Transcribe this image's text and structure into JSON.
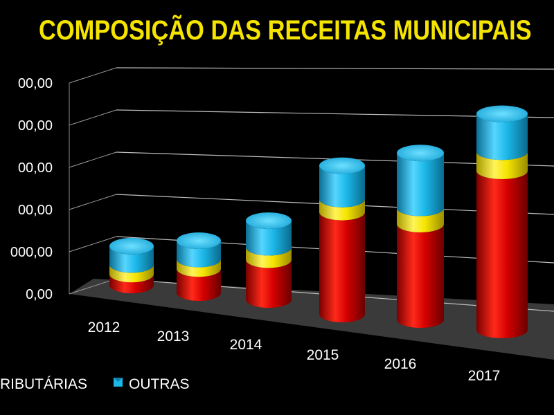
{
  "chart_data": {
    "type": "bar",
    "title": "COMPOSIÇÃO DAS RECEITAS MUNICIPAIS",
    "categories": [
      "2012",
      "2013",
      "2014",
      "2015",
      "2016",
      "2017"
    ],
    "y_tick_labels": [
      "0,00",
      "000,00",
      "00,00",
      "00,00",
      "00,00",
      "00,00"
    ],
    "ylim": [
      0,
      5
    ],
    "stacked": true,
    "series": [
      {
        "name": "",
        "color": "#d40000",
        "values": [
          0.25,
          0.55,
          0.9,
          2.2,
          2.0,
          3.15
        ]
      },
      {
        "name": "RIBUTÁRIAS",
        "color": "#f5e400",
        "values": [
          0.22,
          0.22,
          0.28,
          0.28,
          0.34,
          0.38
        ]
      },
      {
        "name": "OUTRAS",
        "color": "#1bb7e8",
        "values": [
          0.42,
          0.42,
          0.6,
          0.72,
          1.15,
          0.75
        ]
      }
    ],
    "legend": [
      "RIBUTÁRIAS",
      "OUTRAS"
    ],
    "legend_position": "bottom",
    "grid": true,
    "view": "3d-cylinder"
  }
}
